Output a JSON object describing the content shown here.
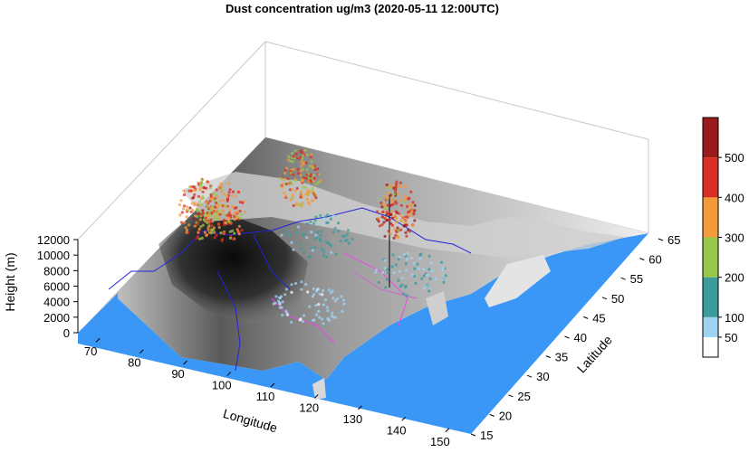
{
  "chart_data": {
    "type": "3d-scatter",
    "title": "Dust concentration ug/m3 (2020-05-11 12:00UTC)",
    "xlabel": "Longitude",
    "ylabel": "Latitude",
    "zlabel": "Height (m)",
    "x_ticks": [
      "70",
      "80",
      "90",
      "100",
      "110",
      "120",
      "130",
      "140",
      "150"
    ],
    "y_ticks": [
      "15",
      "20",
      "25",
      "30",
      "35",
      "40",
      "45",
      "50",
      "55",
      "60",
      "65"
    ],
    "z_ticks": [
      "0",
      "2000",
      "4000",
      "6000",
      "8000",
      "10000",
      "12000"
    ],
    "xlim": [
      65,
      155
    ],
    "ylim": [
      15,
      65
    ],
    "zlim": [
      0,
      12000
    ],
    "colorbar": {
      "ticks": [
        "50",
        "100",
        "200",
        "300",
        "400",
        "500"
      ],
      "bins": [
        {
          "from": 0,
          "to": 50,
          "color": "#ffffff"
        },
        {
          "from": 50,
          "to": 100,
          "color": "#9fd3f4"
        },
        {
          "from": 100,
          "to": 200,
          "color": "#3c9c9c"
        },
        {
          "from": 200,
          "to": 300,
          "color": "#98c84a"
        },
        {
          "from": 300,
          "to": 400,
          "color": "#f39a3a"
        },
        {
          "from": 400,
          "to": 500,
          "color": "#d92e26"
        },
        {
          "from": 500,
          "to": 600,
          "color": "#9b1b1d"
        }
      ]
    },
    "ocean_color": "#3a97f5",
    "dust_clusters": [
      {
        "lon": 113,
        "lat": 44,
        "height": 8000,
        "level": 520
      },
      {
        "lon": 92,
        "lat": 43,
        "height": 9500,
        "level": 420
      },
      {
        "lon": 73,
        "lat": 38,
        "height": 5500,
        "level": 450
      },
      {
        "lon": 80,
        "lat": 37,
        "height": 6500,
        "level": 420
      },
      {
        "lon": 100,
        "lat": 38,
        "height": 6000,
        "level": 150
      },
      {
        "lon": 120,
        "lat": 40,
        "height": 3000,
        "level": 120
      },
      {
        "lon": 105,
        "lat": 30,
        "height": 2000,
        "level": 80
      }
    ]
  }
}
